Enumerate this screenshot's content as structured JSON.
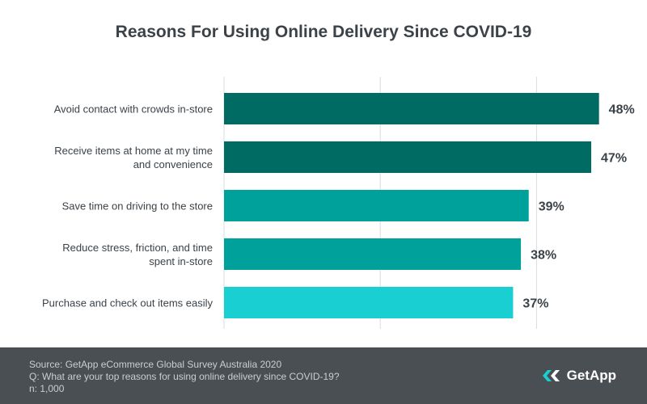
{
  "chart_data": {
    "type": "bar",
    "orientation": "horizontal",
    "title": "Reasons For Using Online Delivery Since COVID-19",
    "categories": [
      [
        "Avoid contact with crowds in-store"
      ],
      [
        "Receive items at home at my time",
        "and convenience"
      ],
      [
        "Save time on driving to the store"
      ],
      [
        "Reduce stress, friction, and time",
        "spent in-store"
      ],
      [
        "Purchase and check out items easily"
      ]
    ],
    "values": [
      48,
      47,
      39,
      38,
      37
    ],
    "value_labels": [
      "48%",
      "47%",
      "39%",
      "38%",
      "37%"
    ],
    "bar_colors": [
      "#006b63",
      "#006b63",
      "#00a19b",
      "#00a19b",
      "#19cfd1"
    ],
    "xlim": [
      0,
      50
    ],
    "grid": "vertical",
    "legend": "none"
  },
  "footer": {
    "source": "Source: GetApp eCommerce Global Survey Australia 2020",
    "question": "Q: What are your top reasons for using online delivery since COVID-19?",
    "sample": "n: 1,000"
  },
  "brand": {
    "name": "GetApp",
    "logo_icon": "getapp-chevrons-icon",
    "icon_colors": [
      "#19cfd1",
      "#ffffff"
    ]
  }
}
